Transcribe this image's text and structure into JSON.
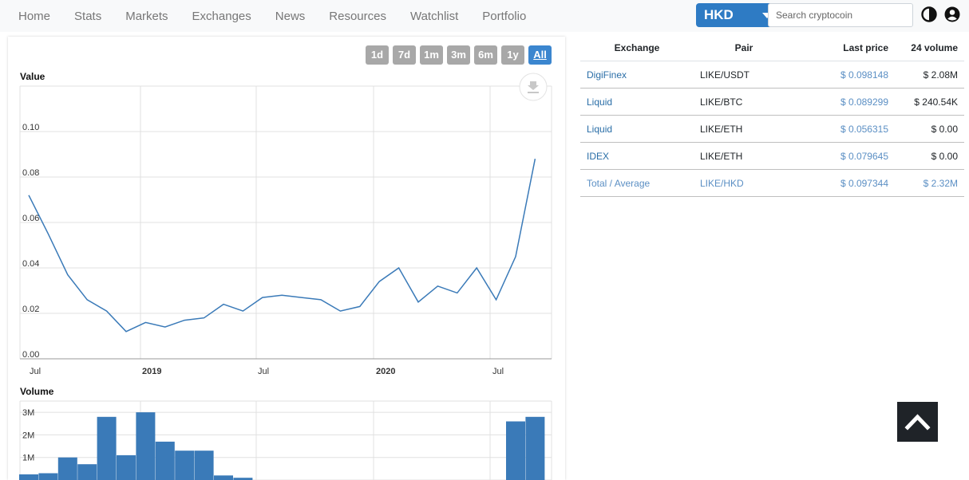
{
  "nav": {
    "items": [
      "Home",
      "Stats",
      "Markets",
      "Exchanges",
      "News",
      "Resources",
      "Watchlist",
      "Portfolio"
    ]
  },
  "currency": {
    "label": "HKD",
    "icon": "caret-down-icon"
  },
  "search": {
    "placeholder": "Search cryptocoin"
  },
  "header_icons": [
    "contrast-icon",
    "user-circle-icon"
  ],
  "range_buttons": [
    "1d",
    "7d",
    "1m",
    "3m",
    "6m",
    "1y",
    "All"
  ],
  "range_active": "All",
  "exchange_table": {
    "headers": [
      "Exchange",
      "Pair",
      "Last price",
      "24 volume"
    ],
    "rows": [
      [
        "DigiFinex",
        "LIKE/USDT",
        "$ 0.098148",
        "$ 2.08M"
      ],
      [
        "Liquid",
        "LIKE/BTC",
        "$ 0.089299",
        "$ 240.54K"
      ],
      [
        "Liquid",
        "LIKE/ETH",
        "$ 0.056315",
        "$ 0.00"
      ],
      [
        "IDEX",
        "LIKE/ETH",
        "$ 0.079645",
        "$ 0.00"
      ]
    ],
    "total": [
      "Total / Average",
      "LIKE/HKD",
      "$ 0.097344",
      "$ 2.32M"
    ]
  },
  "scroll_top_icon": "chevron-up-icon",
  "colors": {
    "accent": "#2e7bc4",
    "series": "#3a7ab8",
    "active_range": "#3b86cf"
  },
  "chart_data": [
    {
      "type": "line",
      "title": "Value",
      "x_ticks": [
        "Jul",
        "2019",
        "Jul",
        "2020",
        "Jul"
      ],
      "y_ticks": [
        "0.00",
        "0.02",
        "0.04",
        "0.06",
        "0.08",
        "0.10"
      ],
      "ylim": [
        0,
        0.12
      ],
      "x": [
        "2018-07",
        "2018-08",
        "2018-09",
        "2018-10",
        "2018-11",
        "2018-12",
        "2019-01",
        "2019-02",
        "2019-03",
        "2019-04",
        "2019-05",
        "2019-06",
        "2019-07",
        "2019-08",
        "2019-09",
        "2019-10",
        "2019-11",
        "2019-12",
        "2020-01",
        "2020-02",
        "2020-03",
        "2020-04",
        "2020-05",
        "2020-06",
        "2020-07",
        "2020-08",
        "2020-09"
      ],
      "series": [
        {
          "values": [
            0.072,
            0.055,
            0.037,
            0.026,
            0.021,
            0.012,
            0.016,
            0.014,
            0.017,
            0.018,
            0.024,
            0.021,
            0.027,
            0.028,
            0.027,
            0.026,
            0.021,
            0.023,
            0.034,
            0.04,
            0.025,
            0.032,
            0.029,
            0.04,
            0.026,
            0.045,
            0.088
          ]
        }
      ],
      "download_icon": "download-icon"
    },
    {
      "type": "bar",
      "title": "Volume",
      "y_ticks": [
        "1M",
        "2M",
        "3M"
      ],
      "ylim": [
        0,
        3500000
      ],
      "x": [
        "2018-07",
        "2018-08",
        "2018-09",
        "2018-10",
        "2018-11",
        "2018-12",
        "2019-01",
        "2019-02",
        "2019-03",
        "2019-04",
        "2019-05",
        "2019-06",
        "2019-07",
        "2019-08",
        "2019-09",
        "2019-10",
        "2019-11",
        "2019-12",
        "2020-01",
        "2020-02",
        "2020-03",
        "2020-04",
        "2020-05",
        "2020-06",
        "2020-07",
        "2020-08",
        "2020-09"
      ],
      "series": [
        {
          "values": [
            250000,
            300000,
            1000000,
            700000,
            2800000,
            1100000,
            3000000,
            1700000,
            1300000,
            1300000,
            200000,
            100000,
            0,
            0,
            0,
            0,
            0,
            0,
            0,
            0,
            0,
            0,
            0,
            0,
            0,
            2600000,
            2800000
          ]
        }
      ]
    }
  ]
}
